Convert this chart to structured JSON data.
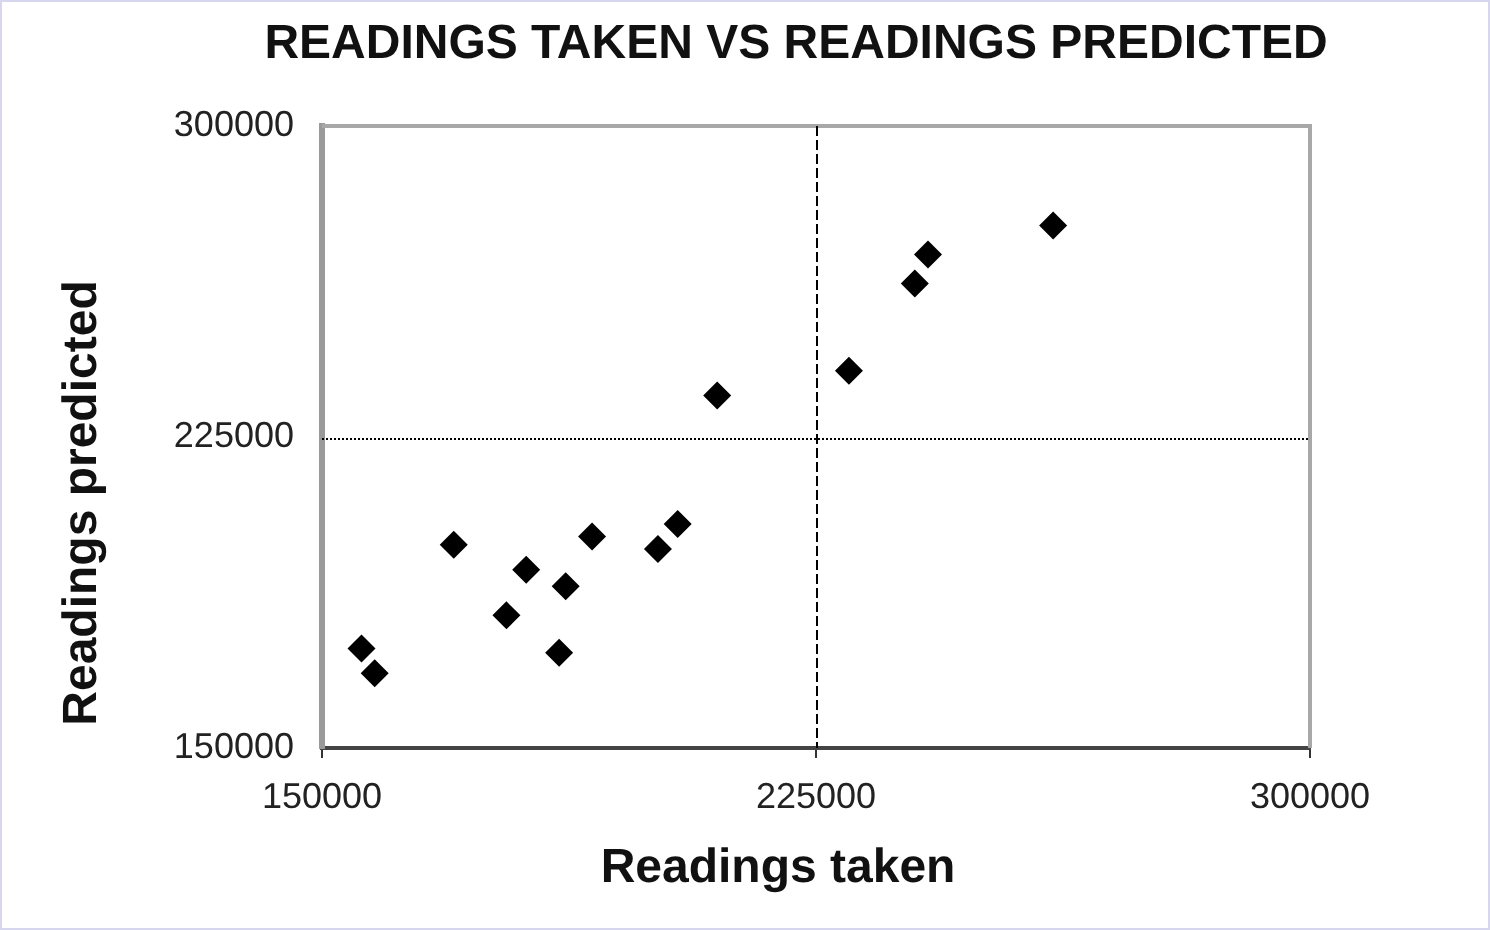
{
  "chart_data": {
    "type": "scatter",
    "title": "READINGS TAKEN VS READINGS PREDICTED",
    "xlabel": "Readings taken",
    "ylabel": "Readings predicted",
    "x": [
      156000,
      158000,
      170000,
      178000,
      181000,
      186000,
      187000,
      191000,
      201000,
      204000,
      210000,
      230000,
      240000,
      242000,
      261000
    ],
    "values": [
      174000,
      168000,
      199000,
      182000,
      193000,
      173000,
      189000,
      201000,
      198000,
      204000,
      235000,
      241000,
      262000,
      269000,
      276000
    ],
    "color": "#000000",
    "marker": "diamond",
    "xlim": [
      150000,
      300000
    ],
    "xticks": [
      150000,
      225000,
      300000
    ],
    "ylim": [
      150000,
      300000
    ],
    "yticks": [
      150000,
      225000,
      300000
    ],
    "ref_lines": [
      {
        "axis": "x",
        "value": 225000,
        "color": "#000000",
        "line_style": "dashed"
      },
      {
        "axis": "y",
        "value": 225000,
        "color": "#000000",
        "line_style": "dotted"
      }
    ],
    "legend": false
  }
}
